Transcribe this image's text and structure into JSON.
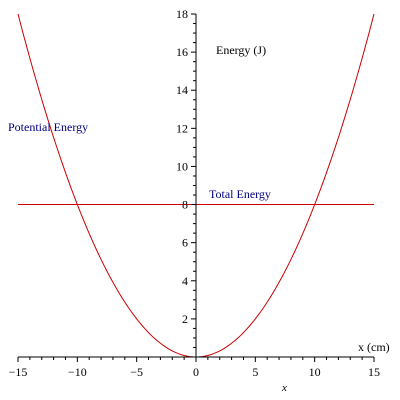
{
  "chart_data": {
    "type": "line",
    "xlabel": "x (cm)",
    "xlabel_symbol": "x",
    "ylabel": "Energy (J)",
    "xlim": [
      -15,
      15
    ],
    "ylim": [
      0,
      18
    ],
    "x_ticks": [
      -15,
      -10,
      -5,
      0,
      5,
      10,
      15
    ],
    "x_tick_labels": [
      "−15",
      "−10",
      "−5",
      "0",
      "5",
      "10",
      "15"
    ],
    "y_ticks": [
      2,
      4,
      6,
      8,
      10,
      12,
      14,
      16,
      18
    ],
    "y_tick_labels": [
      "2",
      "4",
      "6",
      "8",
      "10",
      "12",
      "14",
      "16",
      "18"
    ],
    "grid": false,
    "series": [
      {
        "name": "Potential Energy",
        "color": "#cc0000",
        "x": [
          -15,
          -12.5,
          -10,
          -7.5,
          -5,
          -2.5,
          0,
          2.5,
          5,
          7.5,
          10,
          12.5,
          15
        ],
        "y": [
          18,
          12.5,
          8,
          4.5,
          2,
          0.5,
          0,
          0.5,
          2,
          4.5,
          8,
          12.5,
          18
        ]
      },
      {
        "name": "Total Energy",
        "color": "#cc0000",
        "x": [
          -15,
          15
        ],
        "y": [
          8,
          8
        ]
      }
    ],
    "annotations": [
      {
        "text": "Potential Energy",
        "color": "#000080"
      },
      {
        "text": "Total Energy",
        "color": "#000080"
      }
    ]
  }
}
